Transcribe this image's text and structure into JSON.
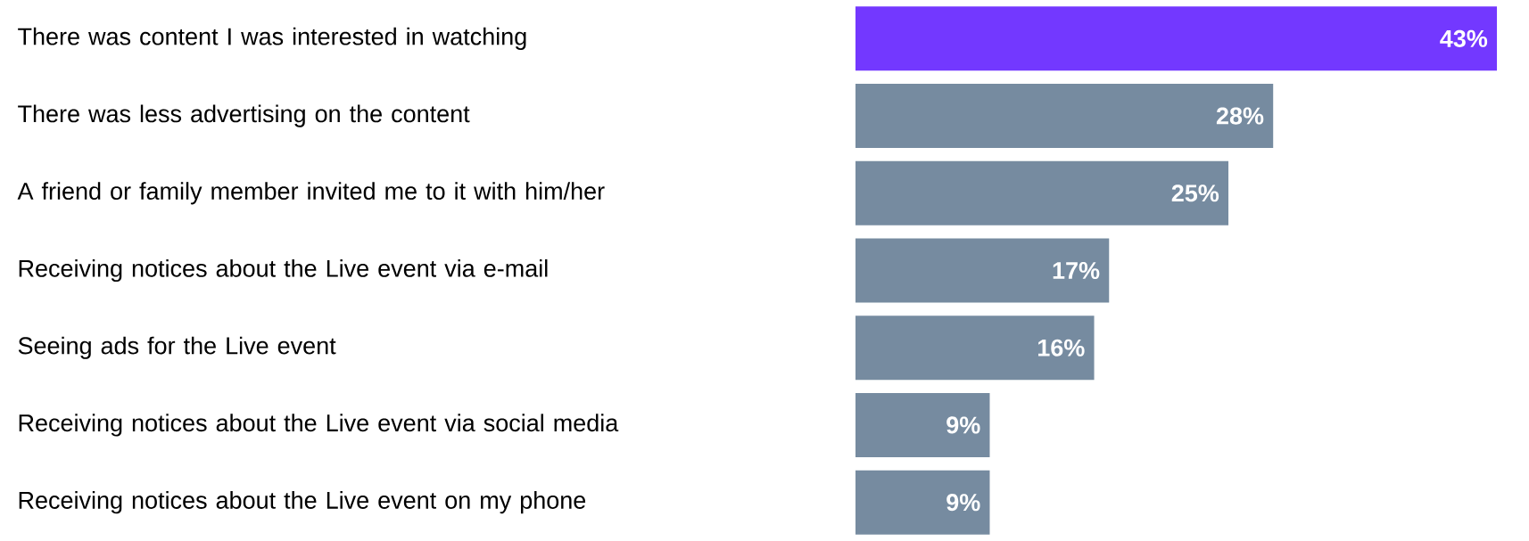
{
  "chart_data": {
    "type": "bar",
    "orientation": "horizontal",
    "categories": [
      "There was content I was interested in watching",
      "There was less advertising on the content",
      "A friend or family member invited me to it with him/her",
      "Receiving notices about the Live event via e-mail",
      "Seeing ads for the Live event",
      "Receiving notices about the Live event via social media",
      "Receiving notices about the Live event on my phone"
    ],
    "values": [
      43,
      28,
      25,
      17,
      16,
      9,
      9
    ],
    "value_labels": [
      "43%",
      "28%",
      "25%",
      "17%",
      "16%",
      "9%",
      "9%"
    ],
    "colors": [
      "#7338ff",
      "#768ba0",
      "#768ba0",
      "#768ba0",
      "#768ba0",
      "#768ba0",
      "#768ba0"
    ],
    "tick_labels": "y"
  }
}
